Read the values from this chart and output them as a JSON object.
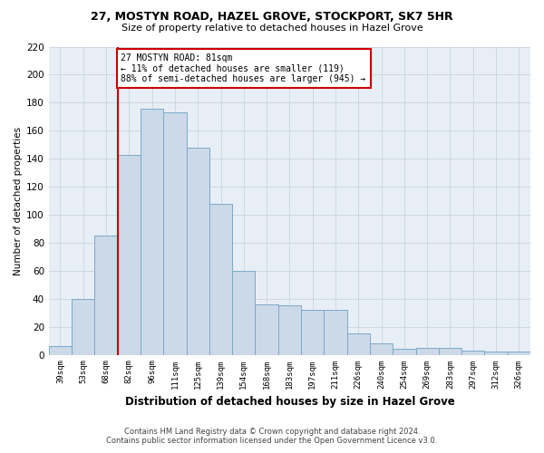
{
  "title": "27, MOSTYN ROAD, HAZEL GROVE, STOCKPORT, SK7 5HR",
  "subtitle": "Size of property relative to detached houses in Hazel Grove",
  "xlabel": "Distribution of detached houses by size in Hazel Grove",
  "ylabel": "Number of detached properties",
  "footnote1": "Contains HM Land Registry data © Crown copyright and database right 2024.",
  "footnote2": "Contains public sector information licensed under the Open Government Licence v3.0.",
  "annotation_line1": "27 MOSTYN ROAD: 81sqm",
  "annotation_line2": "← 11% of detached houses are smaller (119)",
  "annotation_line3": "88% of semi-detached houses are larger (945) →",
  "bar_labels": [
    "39sqm",
    "53sqm",
    "68sqm",
    "82sqm",
    "96sqm",
    "111sqm",
    "125sqm",
    "139sqm",
    "154sqm",
    "168sqm",
    "183sqm",
    "197sqm",
    "211sqm",
    "226sqm",
    "240sqm",
    "254sqm",
    "269sqm",
    "283sqm",
    "297sqm",
    "312sqm",
    "326sqm"
  ],
  "bar_values": [
    6,
    40,
    85,
    143,
    176,
    173,
    148,
    108,
    60,
    36,
    35,
    32,
    32,
    15,
    8,
    4,
    5,
    5,
    3,
    2,
    2
  ],
  "bar_color": "#ccd9e8",
  "bar_edge_color": "#7aaac8",
  "vline_color": "#cc0000",
  "annotation_box_color": "#cc0000",
  "ylim": [
    0,
    220
  ],
  "yticks": [
    0,
    20,
    40,
    60,
    80,
    100,
    120,
    140,
    160,
    180,
    200,
    220
  ],
  "bg_color": "#ffffff",
  "grid_color": "#c8d4e0"
}
